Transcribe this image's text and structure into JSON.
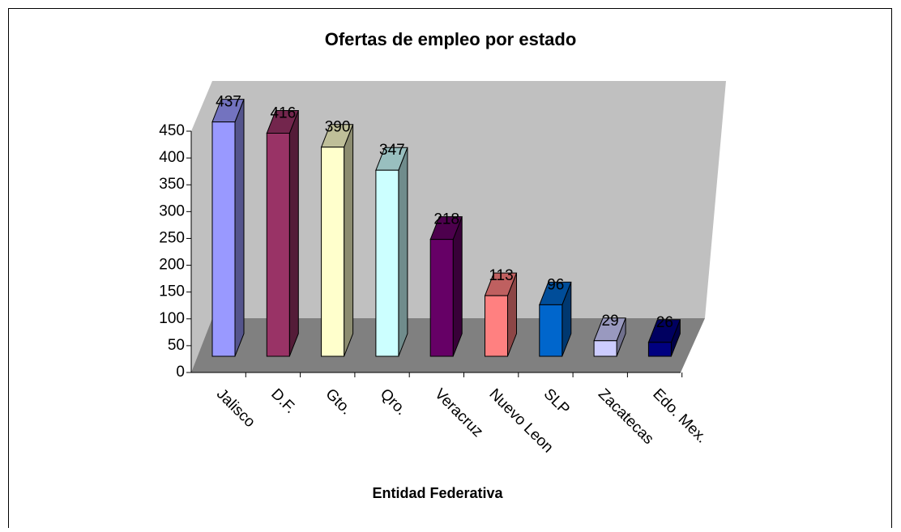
{
  "chart_data": {
    "type": "bar3d",
    "title": "Ofertas de empleo por estado",
    "x_label": "Entidad Federativa",
    "categories": [
      "Jalisco",
      "D.F.",
      "Gto.",
      "Qro.",
      "Veracruz",
      "Nuevo Leon",
      "SLP",
      "Zacatecas",
      "Edo. Mex."
    ],
    "values": [
      437,
      416,
      390,
      347,
      218,
      113,
      96,
      29,
      26
    ],
    "colors": [
      "#9999ff",
      "#993366",
      "#ffffcc",
      "#ccffff",
      "#660066",
      "#ff8080",
      "#0066cc",
      "#ccccff",
      "#000080"
    ],
    "ylim": [
      0,
      450
    ],
    "yticks": [
      0,
      50,
      100,
      150,
      200,
      250,
      300,
      350,
      400,
      450
    ],
    "grid": false
  }
}
